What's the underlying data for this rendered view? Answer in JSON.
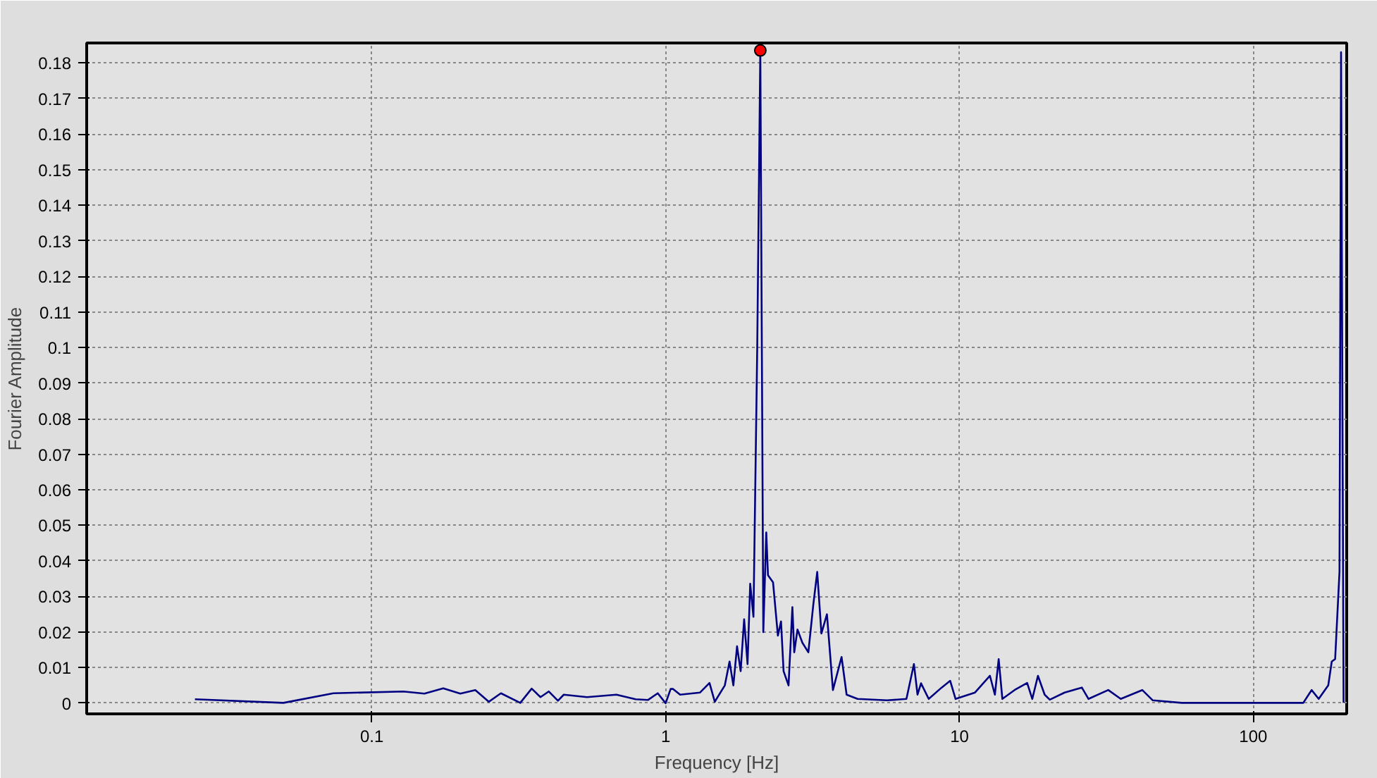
{
  "chart_data": {
    "type": "line",
    "xlabel": "Frequency [Hz]",
    "ylabel": "Fourier Amplitude",
    "log": "x",
    "grid": true,
    "xlim": [
      0.0107,
      208
    ],
    "ylim": [
      -0.003,
      0.1856
    ],
    "xticks": [
      0.1,
      1,
      10,
      100
    ],
    "yticks": [
      0,
      0.01,
      0.02,
      0.03,
      0.04,
      0.05,
      0.06,
      0.07,
      0.08,
      0.09,
      0.1,
      0.11,
      0.12,
      0.13,
      0.14,
      0.15,
      0.16,
      0.17,
      0.18
    ],
    "series": [
      {
        "color": "#000080",
        "marker": "none",
        "line_style": "solid",
        "x": [
          0.025,
          0.05,
          0.074,
          0.128,
          0.151,
          0.175,
          0.2,
          0.225,
          0.25,
          0.275,
          0.32,
          0.35,
          0.375,
          0.4,
          0.43,
          0.45,
          0.54,
          0.68,
          0.79,
          0.87,
          0.94,
          1.0,
          1.04,
          1.06,
          1.12,
          1.31,
          1.41,
          1.47,
          1.59,
          1.65,
          1.7,
          1.75,
          1.8,
          1.85,
          1.9,
          1.94,
          1.99,
          2.05,
          2.1,
          2.15,
          2.2,
          2.23,
          2.32,
          2.41,
          2.47,
          2.52,
          2.62,
          2.7,
          2.74,
          2.81,
          2.92,
          3.06,
          3.18,
          3.28,
          3.39,
          3.54,
          3.71,
          3.97,
          4.13,
          4.5,
          5.67,
          6.6,
          7.0,
          7.2,
          7.4,
          7.86,
          8.7,
          9.3,
          9.7,
          11.3,
          12.7,
          13.2,
          13.6,
          14.0,
          15.4,
          17.0,
          17.7,
          18.5,
          19.5,
          20.3,
          22.8,
          26.1,
          27.5,
          32.1,
          35.4,
          41.9,
          45.5,
          57.1,
          148,
          158,
          167,
          180,
          185,
          190,
          196.6,
          199,
          203
        ],
        "values": [
          0.0011,
          0.0001,
          0.0028,
          0.0033,
          0.0027,
          0.0042,
          0.0027,
          0.0037,
          0.0004,
          0.0028,
          0.0001,
          0.0041,
          0.0017,
          0.0033,
          0.0007,
          0.0024,
          0.0017,
          0.0024,
          0.0011,
          0.0009,
          0.0028,
          0.0,
          0.004,
          0.004,
          0.0024,
          0.003,
          0.0057,
          0.0004,
          0.005,
          0.0117,
          0.005,
          0.016,
          0.009,
          0.0236,
          0.011,
          0.0336,
          0.0243,
          0.1,
          0.1835,
          0.02,
          0.048,
          0.036,
          0.034,
          0.019,
          0.023,
          0.009,
          0.005,
          0.027,
          0.0143,
          0.0207,
          0.017,
          0.0143,
          0.0276,
          0.0369,
          0.0196,
          0.025,
          0.0037,
          0.013,
          0.0024,
          0.0012,
          0.0008,
          0.0012,
          0.011,
          0.0024,
          0.0056,
          0.0012,
          0.0044,
          0.0063,
          0.0012,
          0.003,
          0.0077,
          0.0024,
          0.0124,
          0.0012,
          0.0037,
          0.0057,
          0.0012,
          0.0077,
          0.0024,
          0.001,
          0.003,
          0.0044,
          0.0012,
          0.0037,
          0.0012,
          0.0037,
          0.0008,
          0.0001,
          0.0001,
          0.0037,
          0.0012,
          0.005,
          0.0117,
          0.0124,
          0.037,
          0.183,
          0.0001
        ]
      },
      {
        "type": "scatter",
        "color": "#ff0000",
        "marker": "circle",
        "x": [
          2.1
        ],
        "values": [
          0.1835
        ]
      }
    ]
  }
}
